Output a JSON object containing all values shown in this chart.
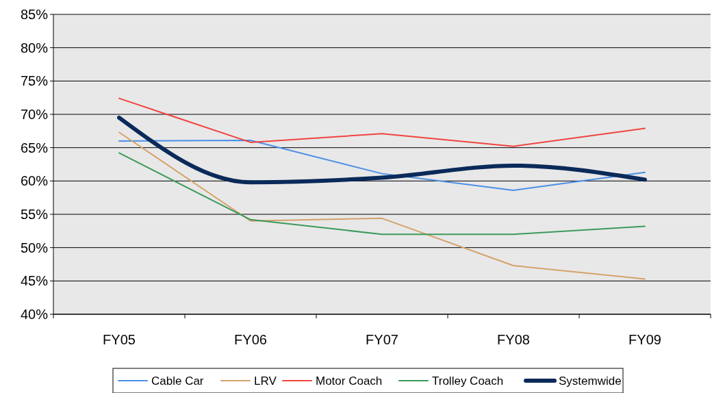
{
  "chart_data": {
    "type": "line",
    "categories": [
      "FY05",
      "FY06",
      "FY07",
      "FY08",
      "FY09"
    ],
    "series": [
      {
        "name": "Cable Car",
        "color": "#4a8fe7",
        "values": [
          66.0,
          66.1,
          61.1,
          58.6,
          61.3
        ]
      },
      {
        "name": "LRV",
        "color": "#d4a26a",
        "values": [
          67.3,
          54.0,
          54.4,
          47.3,
          45.3
        ]
      },
      {
        "name": "Motor Coach",
        "color": "#f0443e",
        "values": [
          72.4,
          65.8,
          67.1,
          65.2,
          67.9
        ]
      },
      {
        "name": "Trolley Coach",
        "color": "#3a9a5a",
        "values": [
          64.2,
          54.2,
          52.0,
          52.0,
          53.2
        ]
      },
      {
        "name": "Systemwide",
        "color": "#0a2a5a",
        "values": [
          69.5,
          59.8,
          60.5,
          62.3,
          60.2
        ]
      }
    ],
    "ylim": [
      40,
      85
    ],
    "yticks": [
      {
        "value": 40,
        "label": "40%"
      },
      {
        "value": 45,
        "label": "45%"
      },
      {
        "value": 50,
        "label": "50%"
      },
      {
        "value": 55,
        "label": "55%"
      },
      {
        "value": 60,
        "label": "60%"
      },
      {
        "value": 65,
        "label": "65%"
      },
      {
        "value": 70,
        "label": "70%"
      },
      {
        "value": 75,
        "label": "75%"
      },
      {
        "value": 80,
        "label": "80%"
      },
      {
        "value": 85,
        "label": "85%"
      }
    ],
    "grid": "y",
    "legend": "bottom",
    "marker": "none",
    "line_style": "solid"
  }
}
